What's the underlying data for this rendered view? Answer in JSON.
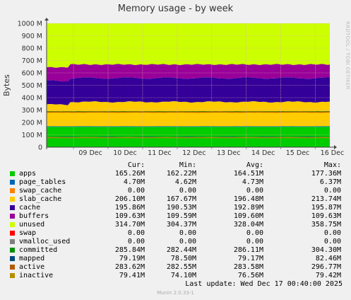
{
  "title": "Memory usage - by week",
  "side_label": "RRDTOOL / TOBI OETIKER",
  "footer": "Munin 2.0.33-1",
  "last_update": "Last update: Wed Dec 17 00:40:00 2025",
  "legend_headers": {
    "cur": "Cur:",
    "min": "Min:",
    "avg": "Avg:",
    "max": "Max:"
  },
  "legend": [
    {
      "name": "apps",
      "color": "#00cc00",
      "cur": "165.26M",
      "min": "162.22M",
      "avg": "164.51M",
      "max": "177.36M"
    },
    {
      "name": "page_tables",
      "color": "#0066b3",
      "cur": "4.70M",
      "min": "4.62M",
      "avg": "4.73M",
      "max": "6.37M"
    },
    {
      "name": "swap_cache",
      "color": "#ff8000",
      "cur": "0.00",
      "min": "0.00",
      "avg": "0.00",
      "max": "0.00"
    },
    {
      "name": "slab_cache",
      "color": "#ffcc00",
      "cur": "206.10M",
      "min": "167.67M",
      "avg": "196.48M",
      "max": "213.74M"
    },
    {
      "name": "cache",
      "color": "#330099",
      "cur": "195.86M",
      "min": "190.53M",
      "avg": "192.89M",
      "max": "195.87M"
    },
    {
      "name": "buffers",
      "color": "#990099",
      "cur": "109.63M",
      "min": "109.59M",
      "avg": "109.60M",
      "max": "109.63M"
    },
    {
      "name": "unused",
      "color": "#ccff00",
      "cur": "314.70M",
      "min": "304.37M",
      "avg": "328.04M",
      "max": "358.75M"
    },
    {
      "name": "swap",
      "color": "#ff0000",
      "cur": "0.00",
      "min": "0.00",
      "avg": "0.00",
      "max": "0.00"
    },
    {
      "name": "vmalloc_used",
      "color": "#808080",
      "cur": "0.00",
      "min": "0.00",
      "avg": "0.00",
      "max": "0.00"
    },
    {
      "name": "committed",
      "color": "#008f00",
      "cur": "285.84M",
      "min": "282.44M",
      "avg": "286.11M",
      "max": "304.30M"
    },
    {
      "name": "mapped",
      "color": "#00487d",
      "cur": "79.19M",
      "min": "78.50M",
      "avg": "79.17M",
      "max": "82.46M"
    },
    {
      "name": "active",
      "color": "#b35a00",
      "cur": "283.62M",
      "min": "282.55M",
      "avg": "283.58M",
      "max": "296.77M"
    },
    {
      "name": "inactive",
      "color": "#b38f00",
      "cur": "79.41M",
      "min": "74.10M",
      "avg": "76.56M",
      "max": "79.42M"
    }
  ],
  "chart_data": {
    "type": "area",
    "title": "Memory usage - by week",
    "ylabel": "Bytes",
    "xlabel": "",
    "ylim": [
      0,
      1000
    ],
    "y_unit": "M",
    "y_ticks": [
      "0",
      "100 M",
      "200 M",
      "300 M",
      "400 M",
      "500 M",
      "600 M",
      "700 M",
      "800 M",
      "900 M",
      "1000 M"
    ],
    "x_ticks": [
      "09 Dec",
      "10 Dec",
      "11 Dec",
      "12 Dec",
      "13 Dec",
      "14 Dec",
      "15 Dec",
      "16 Dec"
    ],
    "grid": true,
    "stacked_series": [
      {
        "name": "apps",
        "color": "#00cc00",
        "avg": 164.51
      },
      {
        "name": "page_tables",
        "color": "#0066b3",
        "avg": 4.73
      },
      {
        "name": "swap_cache",
        "color": "#ff8000",
        "avg": 0
      },
      {
        "name": "slab_cache",
        "color": "#ffcc00",
        "avg": 196.48
      },
      {
        "name": "cache",
        "color": "#330099",
        "avg": 192.89
      },
      {
        "name": "buffers",
        "color": "#990099",
        "avg": 109.6
      },
      {
        "name": "unused",
        "color": "#ccff00",
        "avg": 328.04
      }
    ],
    "line_series": [
      {
        "name": "committed",
        "color": "#008f00",
        "avg": 286.11
      },
      {
        "name": "mapped",
        "color": "#00487d",
        "avg": 79.17
      },
      {
        "name": "active",
        "color": "#b35a00",
        "avg": 283.58
      },
      {
        "name": "inactive",
        "color": "#b38f00",
        "avg": 76.56
      }
    ]
  }
}
